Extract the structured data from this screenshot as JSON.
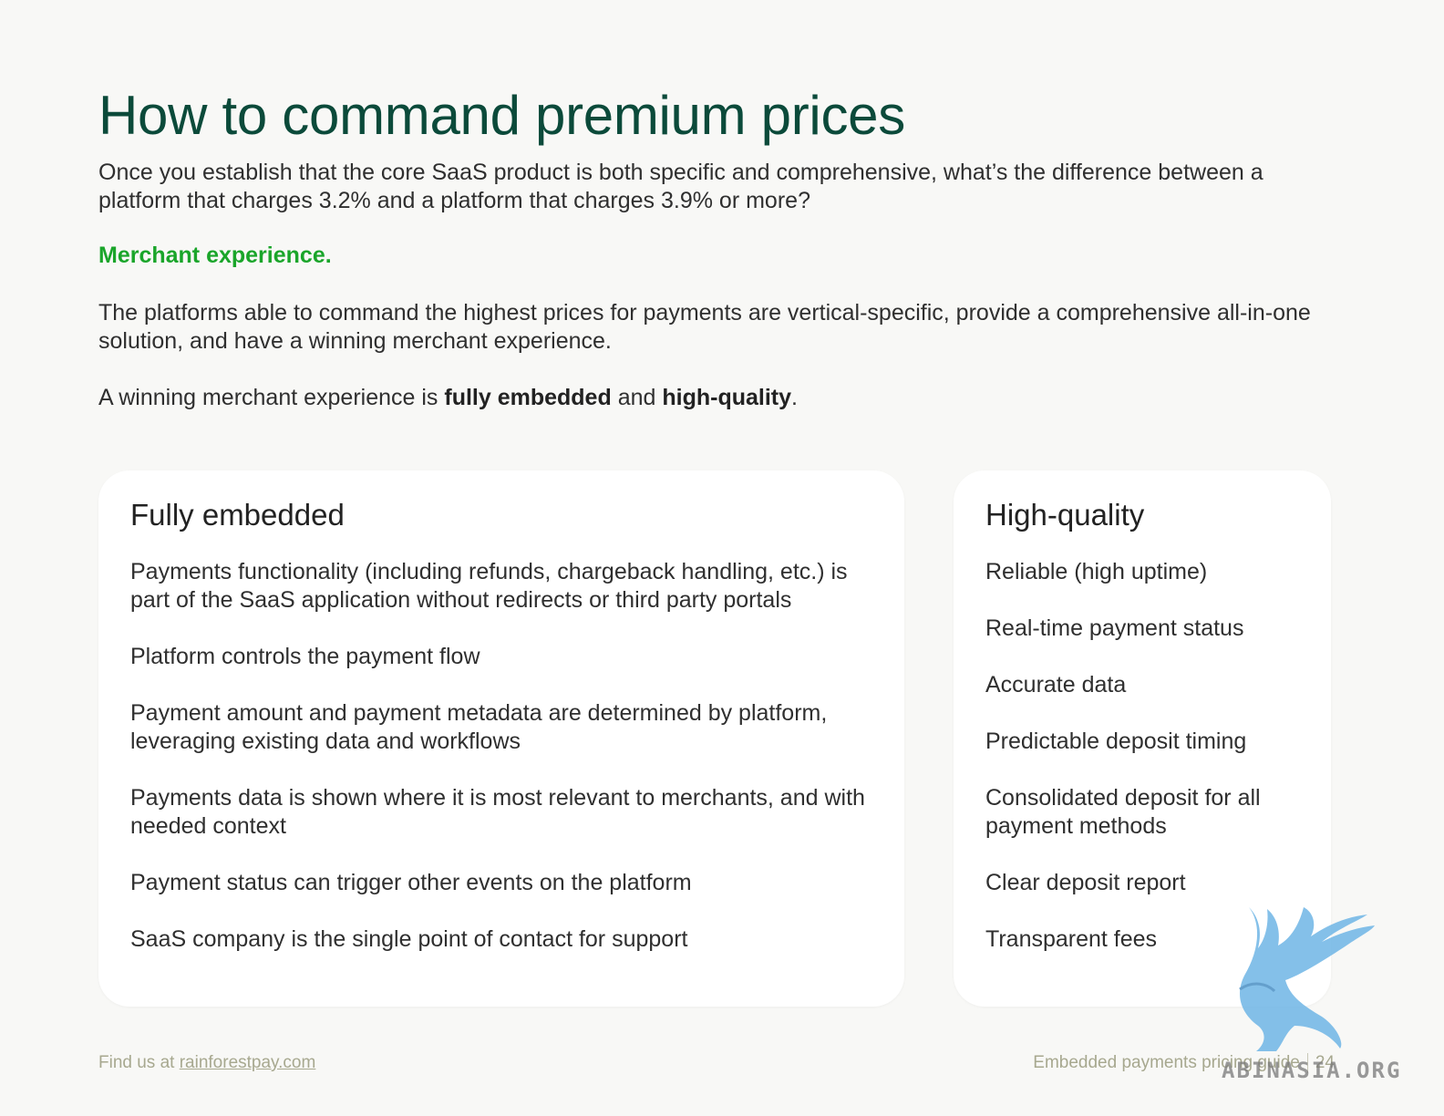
{
  "page": {
    "title": "How to command premium prices",
    "intro": "Once you establish that the core SaaS product is both specific and comprehensive, what’s the difference between a platform that charges 3.2% and a platform that charges 3.9% or more?",
    "highlight": "Merchant experience.",
    "paragraph2": "The platforms able to command the highest prices for payments are vertical-specific, provide a comprehensive all-in-one solution, and have a winning merchant experience.",
    "paragraph3": {
      "prefix": "A winning merchant experience is ",
      "bold1": "fully embedded",
      "middle": " and ",
      "bold2": "high-quality",
      "suffix": "."
    }
  },
  "cards": {
    "fully_embedded": {
      "title": "Fully embedded",
      "items": [
        "Payments functionality (including refunds, chargeback handling, etc.) is part of the SaaS application without redirects or third party portals",
        "Platform controls the payment flow",
        "Payment amount and payment metadata are determined by platform, leveraging existing data and workflows",
        "Payments data is shown where it is most relevant to merchants, and with needed context",
        "Payment status can trigger other events on the platform",
        "SaaS company is the single point of contact for support"
      ]
    },
    "high_quality": {
      "title": "High-quality",
      "items": [
        "Reliable (high uptime)",
        "Real-time payment status",
        "Accurate data",
        "Predictable deposit timing",
        "Consolidated deposit for all payment methods",
        "Clear deposit report",
        "Transparent fees"
      ]
    }
  },
  "footer": {
    "find_prefix": "Find us at ",
    "link": "rainforestpay.com",
    "guide": "Embedded payments pricing guide",
    "page_number": "24"
  },
  "watermark": {
    "text": "ABINASIA.ORG",
    "icon": "griffin-icon"
  },
  "colors": {
    "title": "#0b4a3a",
    "highlight": "#1aa52a",
    "background": "#f8f8f6",
    "card": "#ffffff",
    "footer": "#a7a88f"
  }
}
